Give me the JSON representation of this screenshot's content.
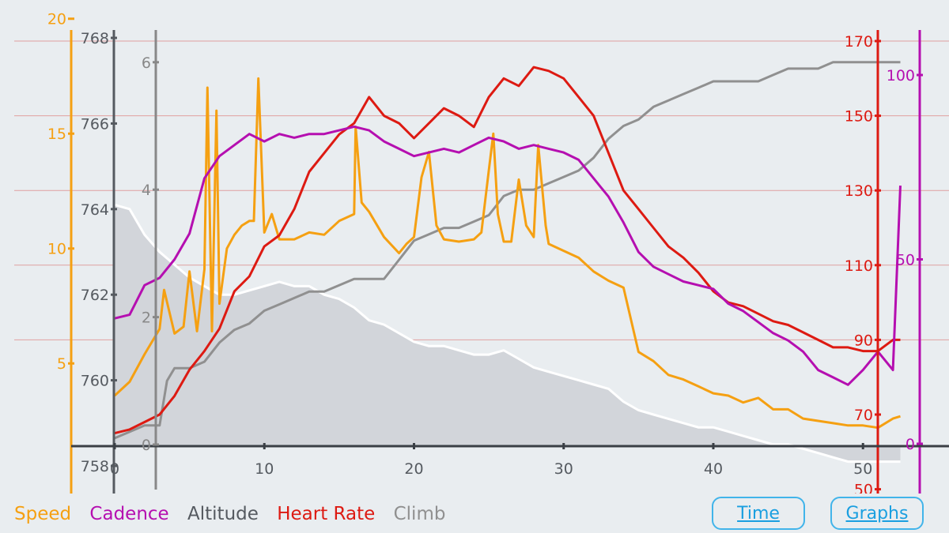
{
  "colors": {
    "speed": "#f5a012",
    "cadence": "#b50fb0",
    "altitude": "#555a60",
    "heart_rate": "#dd1a12",
    "climb": "#909090",
    "grid": "#e0a0a0",
    "button": "#41b4ea"
  },
  "legend": {
    "speed": "Speed",
    "cadence": "Cadence",
    "altitude": "Altitude",
    "heart_rate": "Heart Rate",
    "climb": "Climb"
  },
  "buttons": {
    "time": "Time",
    "graphs": "Graphs"
  },
  "chart_data": {
    "type": "line",
    "title": "",
    "xlabel": "",
    "x_ticks": [
      "0",
      "10",
      "20",
      "30",
      "40",
      "50"
    ],
    "xlim": [
      0,
      53
    ],
    "axes": {
      "speed": {
        "ticks": [
          "5",
          "10",
          "15",
          "20"
        ],
        "range": [
          1.4,
          20.5
        ]
      },
      "altitude": {
        "ticks": [
          "758",
          "760",
          "762",
          "764",
          "766",
          "768"
        ],
        "range": [
          758,
          768.2
        ]
      },
      "climb": {
        "ticks": [
          "0",
          "2",
          "4",
          "6"
        ],
        "range": [
          0,
          6.4
        ]
      },
      "heart_rate": {
        "ticks": [
          "50",
          "70",
          "90",
          "110",
          "130",
          "150",
          "170"
        ],
        "range": [
          60,
          173
        ]
      },
      "cadence": {
        "ticks": [
          "0",
          "50",
          "100"
        ],
        "range": [
          0,
          113
        ]
      }
    },
    "series": [
      {
        "name": "Altitude",
        "values": [
          [
            0,
            764.1
          ],
          [
            1,
            764
          ],
          [
            2,
            763.4
          ],
          [
            3,
            763
          ],
          [
            4,
            762.7
          ],
          [
            5,
            762.4
          ],
          [
            6,
            762.2
          ],
          [
            7,
            762
          ],
          [
            8,
            762
          ],
          [
            9,
            762.1
          ],
          [
            10,
            762.2
          ],
          [
            11,
            762.3
          ],
          [
            12,
            762.2
          ],
          [
            13,
            762.2
          ],
          [
            14,
            762
          ],
          [
            15,
            761.9
          ],
          [
            16,
            761.7
          ],
          [
            17,
            761.4
          ],
          [
            18,
            761.3
          ],
          [
            19,
            761.1
          ],
          [
            20,
            760.9
          ],
          [
            21,
            760.8
          ],
          [
            22,
            760.8
          ],
          [
            23,
            760.7
          ],
          [
            24,
            760.6
          ],
          [
            25,
            760.6
          ],
          [
            26,
            760.7
          ],
          [
            27,
            760.5
          ],
          [
            28,
            760.3
          ],
          [
            29,
            760.2
          ],
          [
            30,
            760.1
          ],
          [
            31,
            760
          ],
          [
            32,
            759.9
          ],
          [
            33,
            759.8
          ],
          [
            34,
            759.5
          ],
          [
            35,
            759.3
          ],
          [
            36,
            759.2
          ],
          [
            37,
            759.1
          ],
          [
            38,
            759
          ],
          [
            39,
            758.9
          ],
          [
            40,
            758.9
          ],
          [
            41,
            758.8
          ],
          [
            42,
            758.7
          ],
          [
            43,
            758.6
          ],
          [
            44,
            758.5
          ],
          [
            45,
            758.5
          ],
          [
            46,
            758.4
          ],
          [
            47,
            758.3
          ],
          [
            48,
            758.2
          ],
          [
            49,
            758.1
          ],
          [
            50,
            758.1
          ],
          [
            51,
            758.1
          ],
          [
            52,
            758.1
          ],
          [
            52.5,
            758.1
          ]
        ]
      },
      {
        "name": "Climb",
        "values": [
          [
            0,
            0.1
          ],
          [
            1,
            0.2
          ],
          [
            2,
            0.3
          ],
          [
            3,
            0.3
          ],
          [
            3.5,
            1
          ],
          [
            4,
            1.2
          ],
          [
            5,
            1.2
          ],
          [
            6,
            1.3
          ],
          [
            7,
            1.6
          ],
          [
            8,
            1.8
          ],
          [
            9,
            1.9
          ],
          [
            10,
            2.1
          ],
          [
            11,
            2.2
          ],
          [
            12,
            2.3
          ],
          [
            13,
            2.4
          ],
          [
            14,
            2.4
          ],
          [
            15,
            2.5
          ],
          [
            16,
            2.6
          ],
          [
            17,
            2.6
          ],
          [
            18,
            2.6
          ],
          [
            19,
            2.9
          ],
          [
            20,
            3.2
          ],
          [
            21,
            3.3
          ],
          [
            22,
            3.4
          ],
          [
            23,
            3.4
          ],
          [
            24,
            3.5
          ],
          [
            25,
            3.6
          ],
          [
            26,
            3.9
          ],
          [
            27,
            4
          ],
          [
            28,
            4
          ],
          [
            29,
            4.1
          ],
          [
            30,
            4.2
          ],
          [
            31,
            4.3
          ],
          [
            32,
            4.5
          ],
          [
            33,
            4.8
          ],
          [
            34,
            5
          ],
          [
            35,
            5.1
          ],
          [
            36,
            5.3
          ],
          [
            37,
            5.4
          ],
          [
            38,
            5.5
          ],
          [
            39,
            5.6
          ],
          [
            40,
            5.7
          ],
          [
            41,
            5.7
          ],
          [
            42,
            5.7
          ],
          [
            43,
            5.7
          ],
          [
            44,
            5.8
          ],
          [
            45,
            5.9
          ],
          [
            46,
            5.9
          ],
          [
            47,
            5.9
          ],
          [
            48,
            6
          ],
          [
            49,
            6
          ],
          [
            50,
            6
          ],
          [
            51,
            6
          ],
          [
            52,
            6
          ],
          [
            52.5,
            6
          ]
        ]
      },
      {
        "name": "Speed",
        "values": [
          [
            0,
            3.6
          ],
          [
            1,
            4.2
          ],
          [
            2,
            5.4
          ],
          [
            3,
            6.5
          ],
          [
            3.3,
            8.2
          ],
          [
            4,
            6.3
          ],
          [
            4.6,
            6.6
          ],
          [
            5,
            9
          ],
          [
            5.5,
            6.4
          ],
          [
            6,
            9.1
          ],
          [
            6.2,
            17
          ],
          [
            6.5,
            6.4
          ],
          [
            6.8,
            16
          ],
          [
            7,
            7.6
          ],
          [
            7.5,
            10
          ],
          [
            8,
            10.6
          ],
          [
            8.5,
            11
          ],
          [
            9,
            11.2
          ],
          [
            9.3,
            11.2
          ],
          [
            9.6,
            17.4
          ],
          [
            10,
            10.7
          ],
          [
            10.5,
            11.5
          ],
          [
            11,
            10.4
          ],
          [
            12,
            10.4
          ],
          [
            13,
            10.7
          ],
          [
            14,
            10.6
          ],
          [
            15,
            11.2
          ],
          [
            16,
            11.5
          ],
          [
            16.1,
            15.3
          ],
          [
            16.5,
            12
          ],
          [
            17,
            11.6
          ],
          [
            18,
            10.5
          ],
          [
            19,
            9.8
          ],
          [
            19.5,
            10.2
          ],
          [
            20,
            10.5
          ],
          [
            20.5,
            13.1
          ],
          [
            21,
            14.2
          ],
          [
            21.5,
            11
          ],
          [
            22,
            10.4
          ],
          [
            23,
            10.3
          ],
          [
            24,
            10.4
          ],
          [
            24.5,
            10.7
          ],
          [
            25,
            13.4
          ],
          [
            25.3,
            15
          ],
          [
            25.6,
            11.5
          ],
          [
            26,
            10.3
          ],
          [
            26.5,
            10.3
          ],
          [
            27,
            13
          ],
          [
            27.5,
            11
          ],
          [
            28,
            10.5
          ],
          [
            28.3,
            14.5
          ],
          [
            28.8,
            11
          ],
          [
            29,
            10.2
          ],
          [
            30,
            9.9
          ],
          [
            31,
            9.6
          ],
          [
            32,
            9
          ],
          [
            33,
            8.6
          ],
          [
            34,
            8.3
          ],
          [
            35,
            5.5
          ],
          [
            36,
            5.1
          ],
          [
            37,
            4.5
          ],
          [
            38,
            4.3
          ],
          [
            39,
            4
          ],
          [
            40,
            3.7
          ],
          [
            41,
            3.6
          ],
          [
            42,
            3.3
          ],
          [
            43,
            3.5
          ],
          [
            44,
            3
          ],
          [
            45,
            3
          ],
          [
            46,
            2.6
          ],
          [
            47,
            2.5
          ],
          [
            48,
            2.4
          ],
          [
            49,
            2.3
          ],
          [
            50,
            2.3
          ],
          [
            51,
            2.2
          ],
          [
            52,
            2.6
          ],
          [
            52.5,
            2.7
          ]
        ]
      },
      {
        "name": "Heart Rate",
        "values": [
          [
            0,
            65
          ],
          [
            1,
            66
          ],
          [
            2,
            68
          ],
          [
            3,
            70
          ],
          [
            4,
            75
          ],
          [
            5,
            82
          ],
          [
            6,
            87
          ],
          [
            7,
            93
          ],
          [
            8,
            103
          ],
          [
            9,
            107
          ],
          [
            10,
            115
          ],
          [
            11,
            118
          ],
          [
            12,
            125
          ],
          [
            13,
            135
          ],
          [
            14,
            140
          ],
          [
            15,
            145
          ],
          [
            16,
            148
          ],
          [
            17,
            155
          ],
          [
            18,
            150
          ],
          [
            19,
            148
          ],
          [
            20,
            144
          ],
          [
            21,
            148
          ],
          [
            22,
            152
          ],
          [
            23,
            150
          ],
          [
            24,
            147
          ],
          [
            25,
            155
          ],
          [
            26,
            160
          ],
          [
            27,
            158
          ],
          [
            28,
            163
          ],
          [
            29,
            162
          ],
          [
            30,
            160
          ],
          [
            31,
            155
          ],
          [
            32,
            150
          ],
          [
            33,
            140
          ],
          [
            34,
            130
          ],
          [
            35,
            125
          ],
          [
            36,
            120
          ],
          [
            37,
            115
          ],
          [
            38,
            112
          ],
          [
            39,
            108
          ],
          [
            40,
            103
          ],
          [
            41,
            100
          ],
          [
            42,
            99
          ],
          [
            43,
            97
          ],
          [
            44,
            95
          ],
          [
            45,
            94
          ],
          [
            46,
            92
          ],
          [
            47,
            90
          ],
          [
            48,
            88
          ],
          [
            49,
            88
          ],
          [
            50,
            87
          ],
          [
            51,
            87
          ],
          [
            52,
            90
          ],
          [
            52.5,
            90
          ]
        ]
      },
      {
        "name": "Cadence",
        "values": [
          [
            0,
            34
          ],
          [
            1,
            35
          ],
          [
            2,
            43
          ],
          [
            3,
            45
          ],
          [
            4,
            50
          ],
          [
            5,
            57
          ],
          [
            6,
            72
          ],
          [
            7,
            78
          ],
          [
            8,
            81
          ],
          [
            9,
            84
          ],
          [
            10,
            82
          ],
          [
            11,
            84
          ],
          [
            12,
            83
          ],
          [
            13,
            84
          ],
          [
            14,
            84
          ],
          [
            15,
            85
          ],
          [
            16,
            86
          ],
          [
            17,
            85
          ],
          [
            18,
            82
          ],
          [
            19,
            80
          ],
          [
            20,
            78
          ],
          [
            21,
            79
          ],
          [
            22,
            80
          ],
          [
            23,
            79
          ],
          [
            24,
            81
          ],
          [
            25,
            83
          ],
          [
            26,
            82
          ],
          [
            27,
            80
          ],
          [
            28,
            81
          ],
          [
            29,
            80
          ],
          [
            30,
            79
          ],
          [
            31,
            77
          ],
          [
            32,
            72
          ],
          [
            33,
            67
          ],
          [
            34,
            60
          ],
          [
            35,
            52
          ],
          [
            36,
            48
          ],
          [
            37,
            46
          ],
          [
            38,
            44
          ],
          [
            39,
            43
          ],
          [
            40,
            42
          ],
          [
            41,
            38
          ],
          [
            42,
            36
          ],
          [
            43,
            33
          ],
          [
            44,
            30
          ],
          [
            45,
            28
          ],
          [
            46,
            25
          ],
          [
            47,
            20
          ],
          [
            48,
            18
          ],
          [
            49,
            16
          ],
          [
            50,
            20
          ],
          [
            51,
            25
          ],
          [
            52,
            20
          ],
          [
            52.5,
            70
          ]
        ]
      }
    ]
  }
}
